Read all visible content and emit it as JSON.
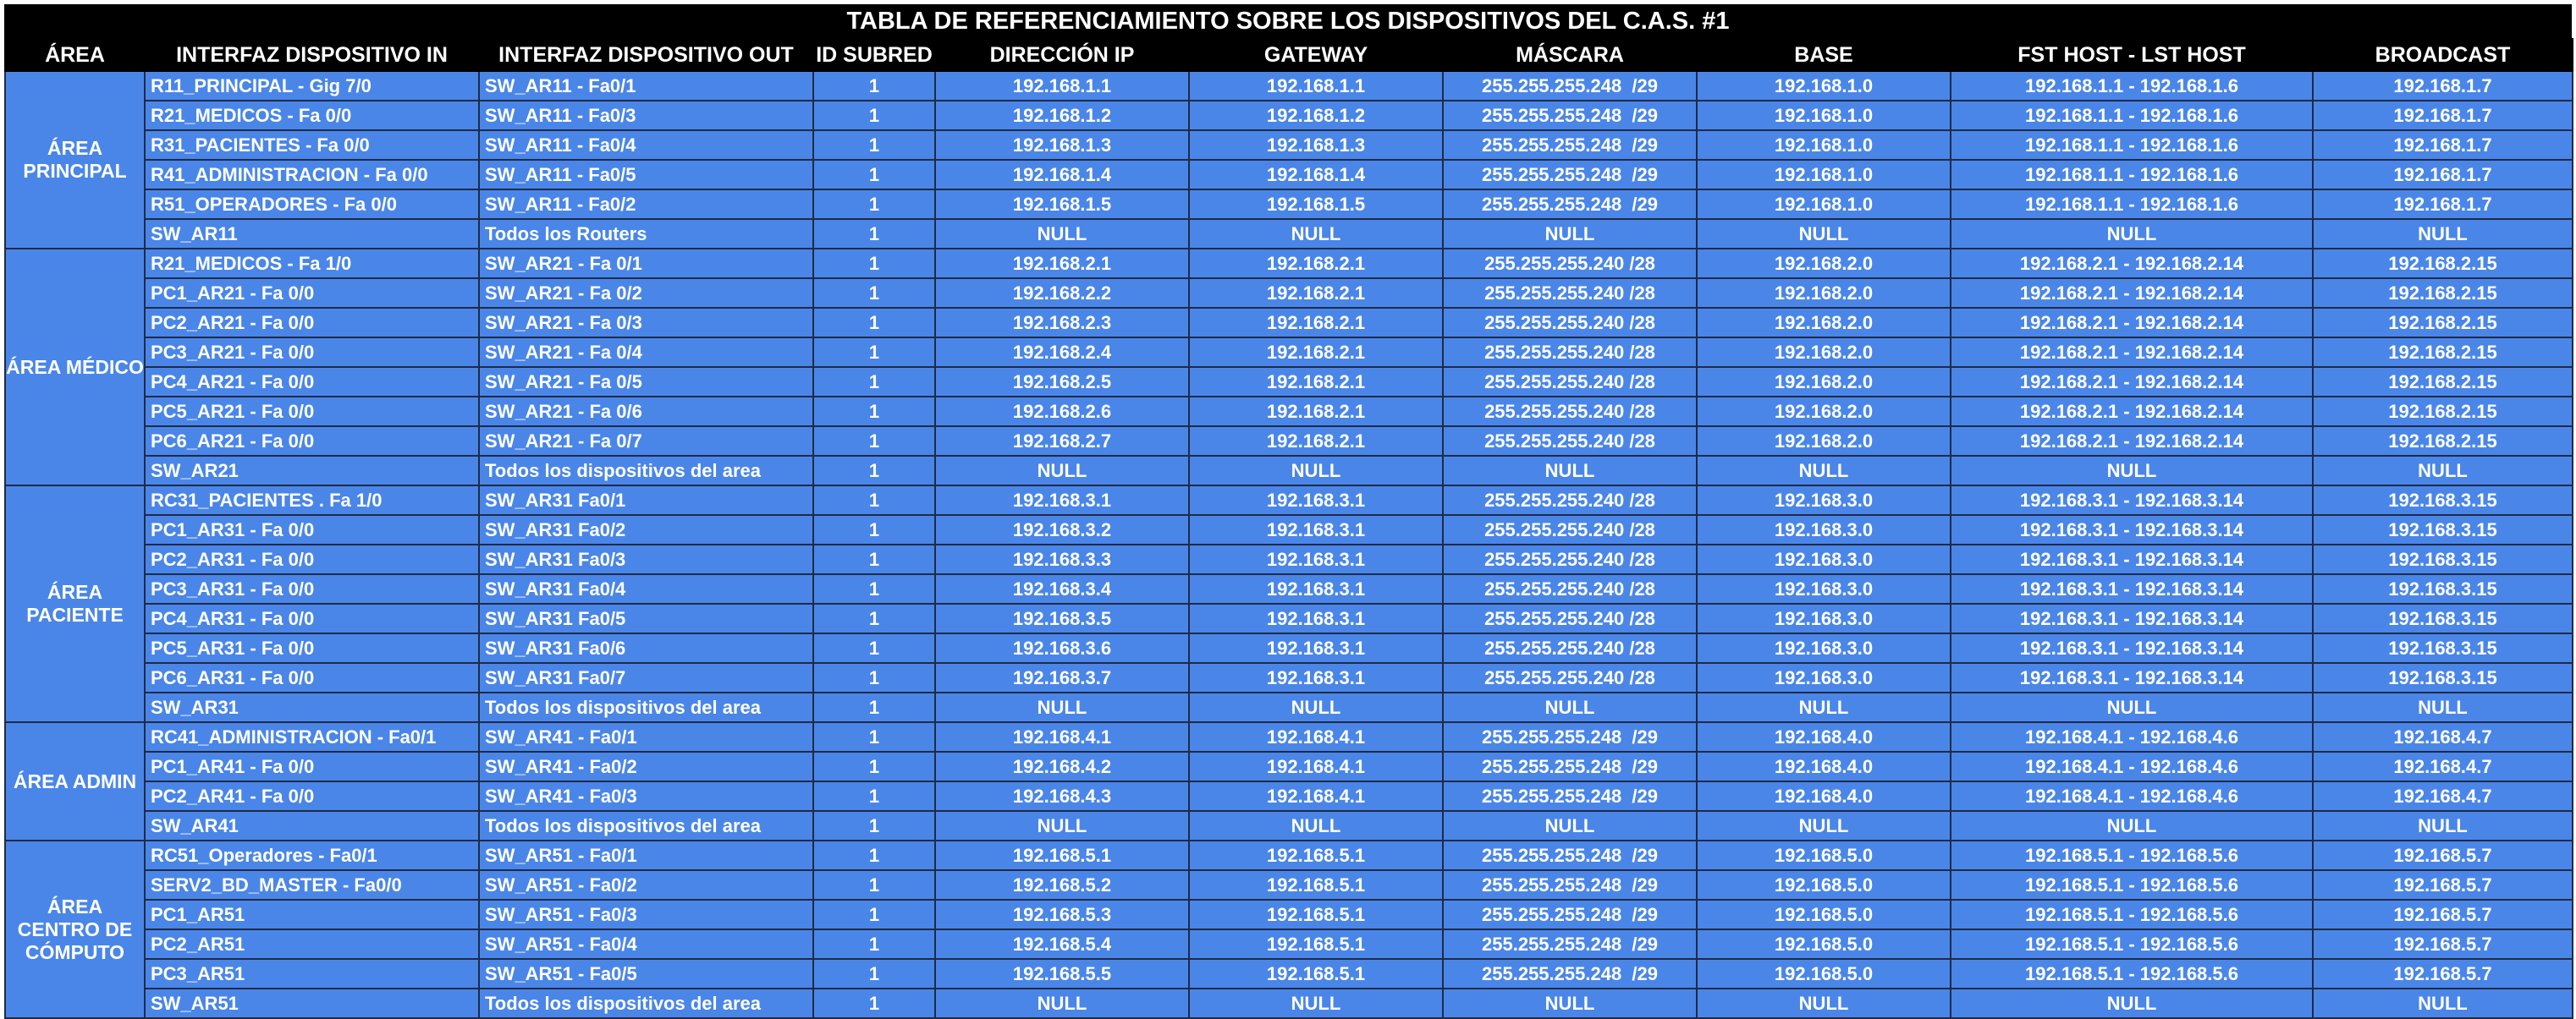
{
  "title": "TABLA DE REFERENCIAMIENTO SOBRE LOS DISPOSITIVOS DEL C.A.S. #1",
  "columns": [
    "ÁREA",
    "INTERFAZ DISPOSITIVO IN",
    "INTERFAZ DISPOSITIVO OUT",
    "ID SUBRED",
    "DIRECCIÓN IP",
    "GATEWAY",
    "MÁSCARA",
    "BASE",
    "FST HOST - LST HOST",
    "BROADCAST"
  ],
  "groups": [
    {
      "area": "ÁREA PRINCIPAL",
      "rows": [
        [
          "R11_PRINCIPAL - Gig 7/0",
          "SW_AR11 - Fa0/1",
          "1",
          "192.168.1.1",
          "192.168.1.1",
          "255.255.255.248  /29",
          "192.168.1.0",
          "192.168.1.1 - 192.168.1.6",
          "192.168.1.7"
        ],
        [
          "R21_MEDICOS - Fa 0/0",
          "SW_AR11 - Fa0/3",
          "1",
          "192.168.1.2",
          "192.168.1.2",
          "255.255.255.248  /29",
          "192.168.1.0",
          "192.168.1.1 - 192.168.1.6",
          "192.168.1.7"
        ],
        [
          "R31_PACIENTES - Fa 0/0",
          "SW_AR11 - Fa0/4",
          "1",
          "192.168.1.3",
          "192.168.1.3",
          "255.255.255.248  /29",
          "192.168.1.0",
          "192.168.1.1 - 192.168.1.6",
          "192.168.1.7"
        ],
        [
          "R41_ADMINISTRACION - Fa 0/0",
          "SW_AR11 - Fa0/5",
          "1",
          "192.168.1.4",
          "192.168.1.4",
          "255.255.255.248  /29",
          "192.168.1.0",
          "192.168.1.1 - 192.168.1.6",
          "192.168.1.7"
        ],
        [
          "R51_OPERADORES - Fa 0/0",
          "SW_AR11 - Fa0/2",
          "1",
          "192.168.1.5",
          "192.168.1.5",
          "255.255.255.248  /29",
          "192.168.1.0",
          "192.168.1.1 - 192.168.1.6",
          "192.168.1.7"
        ],
        [
          "SW_AR11",
          "Todos los Routers",
          "1",
          "NULL",
          "NULL",
          "NULL",
          "NULL",
          "NULL",
          "NULL"
        ]
      ]
    },
    {
      "area": "ÁREA MÉDICO",
      "rows": [
        [
          "R21_MEDICOS - Fa 1/0",
          "SW_AR21 - Fa 0/1",
          "1",
          "192.168.2.1",
          "192.168.2.1",
          "255.255.255.240 /28",
          "192.168.2.0",
          "192.168.2.1 - 192.168.2.14",
          "192.168.2.15"
        ],
        [
          "PC1_AR21 - Fa 0/0",
          "SW_AR21 - Fa 0/2",
          "1",
          "192.168.2.2",
          "192.168.2.1",
          "255.255.255.240 /28",
          "192.168.2.0",
          "192.168.2.1 - 192.168.2.14",
          "192.168.2.15"
        ],
        [
          "PC2_AR21 - Fa 0/0",
          "SW_AR21 - Fa 0/3",
          "1",
          "192.168.2.3",
          "192.168.2.1",
          "255.255.255.240 /28",
          "192.168.2.0",
          "192.168.2.1 - 192.168.2.14",
          "192.168.2.15"
        ],
        [
          "PC3_AR21 - Fa 0/0",
          "SW_AR21 - Fa 0/4",
          "1",
          "192.168.2.4",
          "192.168.2.1",
          "255.255.255.240 /28",
          "192.168.2.0",
          "192.168.2.1 - 192.168.2.14",
          "192.168.2.15"
        ],
        [
          "PC4_AR21 - Fa 0/0",
          "SW_AR21 - Fa 0/5",
          "1",
          "192.168.2.5",
          "192.168.2.1",
          "255.255.255.240 /28",
          "192.168.2.0",
          "192.168.2.1 - 192.168.2.14",
          "192.168.2.15"
        ],
        [
          "PC5_AR21 - Fa 0/0",
          "SW_AR21 - Fa 0/6",
          "1",
          "192.168.2.6",
          "192.168.2.1",
          "255.255.255.240 /28",
          "192.168.2.0",
          "192.168.2.1 - 192.168.2.14",
          "192.168.2.15"
        ],
        [
          "PC6_AR21 - Fa 0/0",
          "SW_AR21 - Fa 0/7",
          "1",
          "192.168.2.7",
          "192.168.2.1",
          "255.255.255.240 /28",
          "192.168.2.0",
          "192.168.2.1 - 192.168.2.14",
          "192.168.2.15"
        ],
        [
          "SW_AR21",
          "Todos los dispositivos del area",
          "1",
          "NULL",
          "NULL",
          "NULL",
          "NULL",
          "NULL",
          "NULL"
        ]
      ]
    },
    {
      "area": "ÁREA PACIENTE",
      "rows": [
        [
          "RC31_PACIENTES . Fa 1/0",
          "SW_AR31 Fa0/1",
          "1",
          "192.168.3.1",
          "192.168.3.1",
          "255.255.255.240 /28",
          "192.168.3.0",
          "192.168.3.1 - 192.168.3.14",
          "192.168.3.15"
        ],
        [
          "PC1_AR31 - Fa 0/0",
          "SW_AR31 Fa0/2",
          "1",
          "192.168.3.2",
          "192.168.3.1",
          "255.255.255.240 /28",
          "192.168.3.0",
          "192.168.3.1 - 192.168.3.14",
          "192.168.3.15"
        ],
        [
          "PC2_AR31 - Fa 0/0",
          "SW_AR31 Fa0/3",
          "1",
          "192.168.3.3",
          "192.168.3.1",
          "255.255.255.240 /28",
          "192.168.3.0",
          "192.168.3.1 - 192.168.3.14",
          "192.168.3.15"
        ],
        [
          "PC3_AR31 - Fa 0/0",
          "SW_AR31 Fa0/4",
          "1",
          "192.168.3.4",
          "192.168.3.1",
          "255.255.255.240 /28",
          "192.168.3.0",
          "192.168.3.1 - 192.168.3.14",
          "192.168.3.15"
        ],
        [
          "PC4_AR31 - Fa 0/0",
          "SW_AR31 Fa0/5",
          "1",
          "192.168.3.5",
          "192.168.3.1",
          "255.255.255.240 /28",
          "192.168.3.0",
          "192.168.3.1 - 192.168.3.14",
          "192.168.3.15"
        ],
        [
          "PC5_AR31 - Fa 0/0",
          "SW_AR31 Fa0/6",
          "1",
          "192.168.3.6",
          "192.168.3.1",
          "255.255.255.240 /28",
          "192.168.3.0",
          "192.168.3.1 - 192.168.3.14",
          "192.168.3.15"
        ],
        [
          "PC6_AR31 - Fa 0/0",
          "SW_AR31 Fa0/7",
          "1",
          "192.168.3.7",
          "192.168.3.1",
          "255.255.255.240 /28",
          "192.168.3.0",
          "192.168.3.1 - 192.168.3.14",
          "192.168.3.15"
        ],
        [
          "SW_AR31",
          "Todos los dispositivos del area",
          "1",
          "NULL",
          "NULL",
          "NULL",
          "NULL",
          "NULL",
          "NULL"
        ]
      ]
    },
    {
      "area": "ÁREA ADMIN",
      "rows": [
        [
          "RC41_ADMINISTRACION - Fa0/1",
          "SW_AR41 - Fa0/1",
          "1",
          "192.168.4.1",
          "192.168.4.1",
          "255.255.255.248  /29",
          "192.168.4.0",
          "192.168.4.1 - 192.168.4.6",
          "192.168.4.7"
        ],
        [
          "PC1_AR41 - Fa 0/0",
          "SW_AR41 - Fa0/2",
          "1",
          "192.168.4.2",
          "192.168.4.1",
          "255.255.255.248  /29",
          "192.168.4.0",
          "192.168.4.1 - 192.168.4.6",
          "192.168.4.7"
        ],
        [
          "PC2_AR41 - Fa 0/0",
          "SW_AR41 - Fa0/3",
          "1",
          "192.168.4.3",
          "192.168.4.1",
          "255.255.255.248  /29",
          "192.168.4.0",
          "192.168.4.1 - 192.168.4.6",
          "192.168.4.7"
        ],
        [
          "SW_AR41",
          "Todos los dispositivos del area",
          "1",
          "NULL",
          "NULL",
          "NULL",
          "NULL",
          "NULL",
          "NULL"
        ]
      ]
    },
    {
      "area": "ÁREA CENTRO DE CÓMPUTO",
      "rows": [
        [
          "RC51_Operadores - Fa0/1",
          "SW_AR51 - Fa0/1",
          "1",
          "192.168.5.1",
          "192.168.5.1",
          "255.255.255.248  /29",
          "192.168.5.0",
          "192.168.5.1 - 192.168.5.6",
          "192.168.5.7"
        ],
        [
          "SERV2_BD_MASTER - Fa0/0",
          "SW_AR51 - Fa0/2",
          "1",
          "192.168.5.2",
          "192.168.5.1",
          "255.255.255.248  /29",
          "192.168.5.0",
          "192.168.5.1 - 192.168.5.6",
          "192.168.5.7"
        ],
        [
          "PC1_AR51",
          "SW_AR51 - Fa0/3",
          "1",
          "192.168.5.3",
          "192.168.5.1",
          "255.255.255.248  /29",
          "192.168.5.0",
          "192.168.5.1 - 192.168.5.6",
          "192.168.5.7"
        ],
        [
          "PC2_AR51",
          "SW_AR51 - Fa0/4",
          "1",
          "192.168.5.4",
          "192.168.5.1",
          "255.255.255.248  /29",
          "192.168.5.0",
          "192.168.5.1 - 192.168.5.6",
          "192.168.5.7"
        ],
        [
          "PC3_AR51",
          "SW_AR51 - Fa0/5",
          "1",
          "192.168.5.5",
          "192.168.5.1",
          "255.255.255.248  /29",
          "192.168.5.0",
          "192.168.5.1 - 192.168.5.6",
          "192.168.5.7"
        ],
        [
          "SW_AR51",
          "Todos los dispositivos del area",
          "1",
          "NULL",
          "NULL",
          "NULL",
          "NULL",
          "NULL",
          "NULL"
        ]
      ]
    }
  ]
}
